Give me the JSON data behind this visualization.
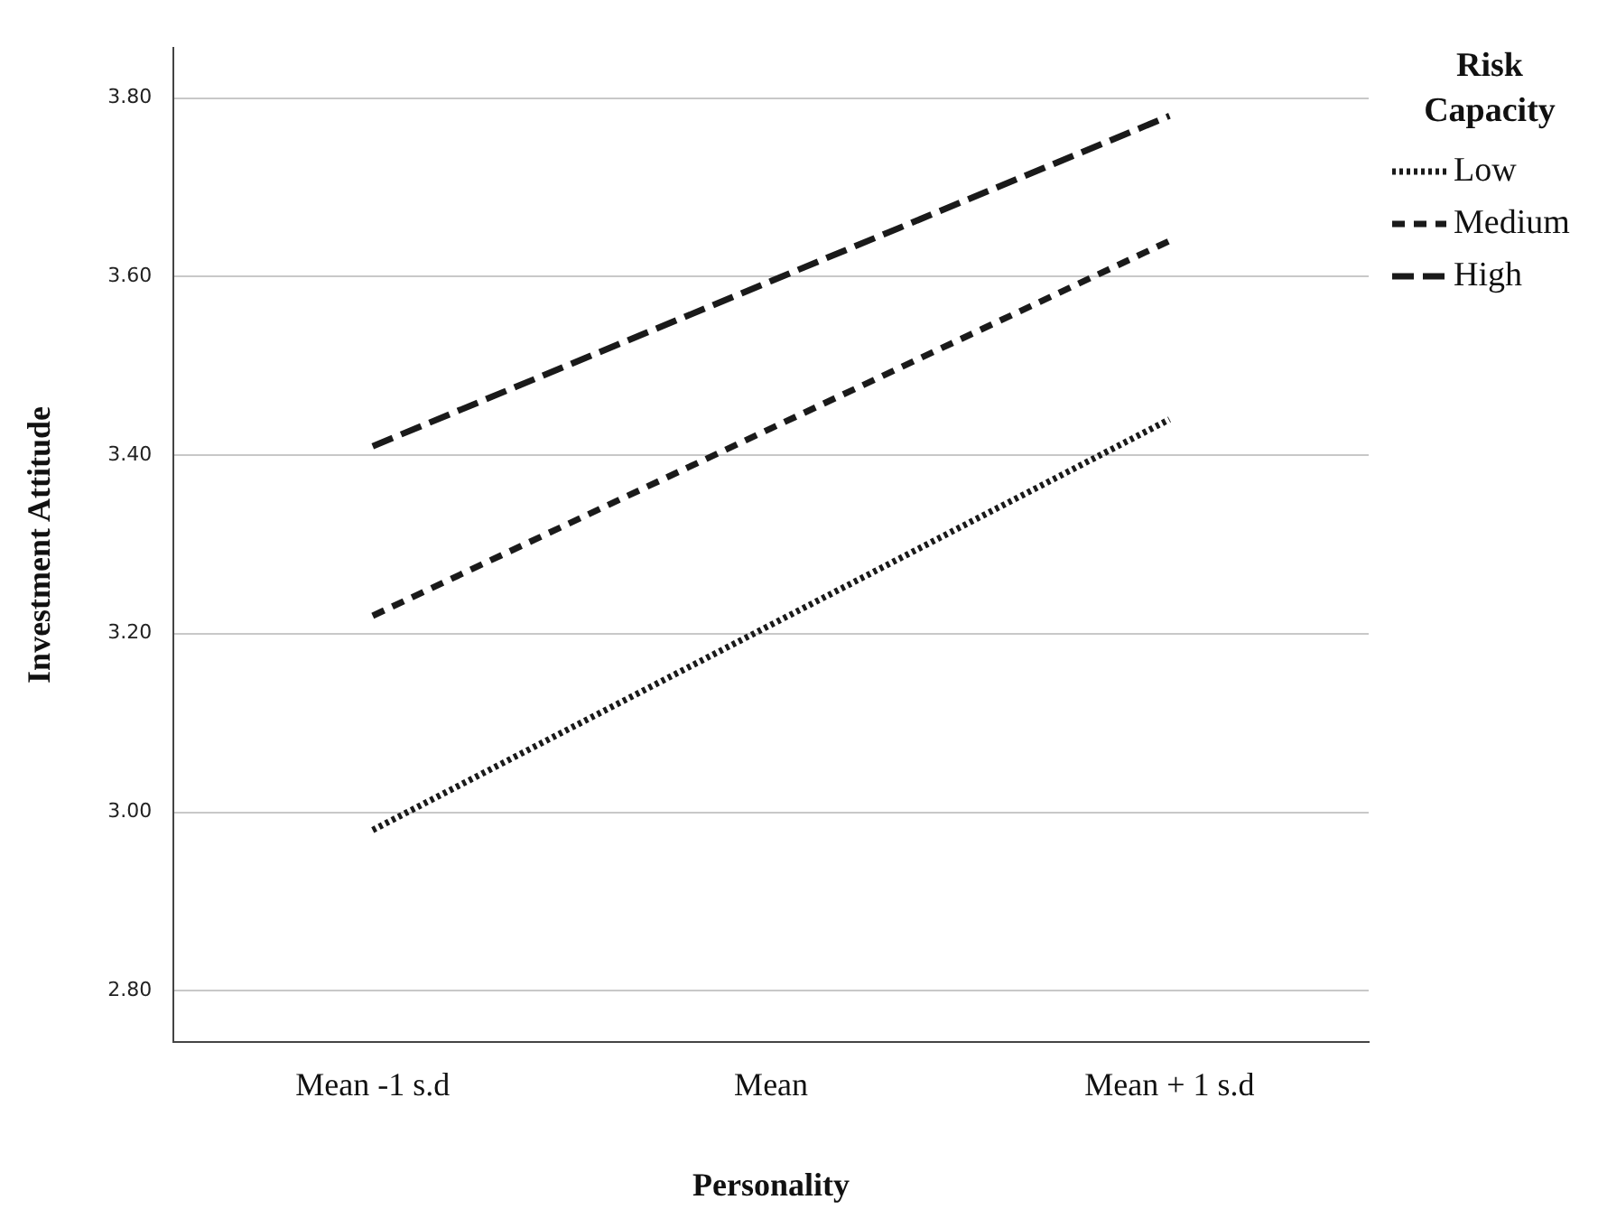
{
  "chart_data": {
    "type": "line",
    "xlabel": "Personality",
    "ylabel": "Investment Attitude",
    "legend_title": "Risk Capacity",
    "categories": [
      "Mean -1 s.d",
      "Mean",
      "Mean + 1 s.d"
    ],
    "series": [
      {
        "name": "Low",
        "color": "#1a1a1a",
        "values": [
          2.98,
          3.21,
          3.44
        ],
        "line_style": "dotted"
      },
      {
        "name": "Medium",
        "color": "#1a1a1a",
        "values": [
          3.22,
          3.43,
          3.64
        ],
        "line_style": "dashed"
      },
      {
        "name": "High",
        "color": "#1a1a1a",
        "values": [
          3.41,
          3.595,
          3.78
        ],
        "line_style": "dashed"
      }
    ],
    "ylim": [
      2.743,
      3.856
    ],
    "yticks": [
      {
        "value": 2.8,
        "label": "2.80"
      },
      {
        "value": 3.0,
        "label": "3.00"
      },
      {
        "value": 3.2,
        "label": "3.20"
      },
      {
        "value": 3.4,
        "label": "3.40"
      },
      {
        "value": 3.6,
        "label": "3.60"
      },
      {
        "value": 3.8,
        "label": "3.80"
      }
    ],
    "grid": "y",
    "legend": "top right",
    "marker": "none"
  }
}
